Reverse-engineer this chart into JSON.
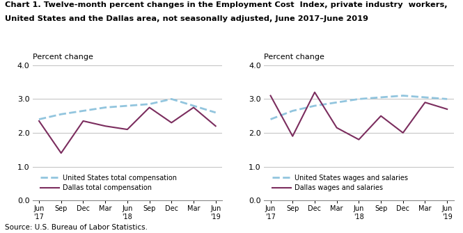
{
  "title_line1": "Chart 1. Twelve-month percent changes in the Employment Cost  Index, private industry  workers,",
  "title_line2": "United States and the Dallas area, not seasonally adjusted, June 2017–June 2019",
  "source": "Source: U.S. Bureau of Labor Statistics.",
  "ylabel": "Percent change",
  "ylim": [
    0.0,
    4.0
  ],
  "yticks": [
    0.0,
    1.0,
    2.0,
    3.0,
    4.0
  ],
  "left_chart": {
    "us_color": "#92c5de",
    "dallas_color": "#7b2d5e",
    "us_label": "United States total compensation",
    "dallas_label": "Dallas total compensation",
    "us_values": [
      2.4,
      2.55,
      2.65,
      2.75,
      2.8,
      2.85,
      3.0,
      2.8,
      2.6
    ],
    "dallas_values": [
      2.35,
      1.4,
      2.35,
      2.2,
      2.1,
      2.75,
      2.3,
      2.75,
      2.2
    ]
  },
  "right_chart": {
    "us_color": "#92c5de",
    "dallas_color": "#7b2d5e",
    "us_label": "United States wages and salaries",
    "dallas_label": "Dallas wages and salaries",
    "us_values": [
      2.4,
      2.65,
      2.8,
      2.9,
      3.0,
      3.05,
      3.1,
      3.05,
      3.0
    ],
    "dallas_values": [
      3.1,
      1.9,
      3.2,
      2.15,
      1.8,
      2.5,
      2.0,
      2.9,
      2.7
    ]
  }
}
